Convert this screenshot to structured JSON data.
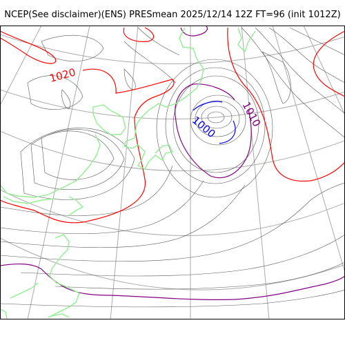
{
  "title": "NCEP(See disclaimer)(ENS) PRESmean 2025/12/14 12Z FT=96 (init 1012Z)",
  "labels": {
    "c1020": "1020",
    "c1010": "1010",
    "c1000": "1000"
  },
  "colors": {
    "isobar_thin": "#555555",
    "isobar_1020": "#ff0000",
    "isobar_1010": "#800080",
    "isobar_1000": "#0000ff",
    "coastline": "#90ee90",
    "graticule": "#aaaaaa",
    "frame": "#000000"
  }
}
